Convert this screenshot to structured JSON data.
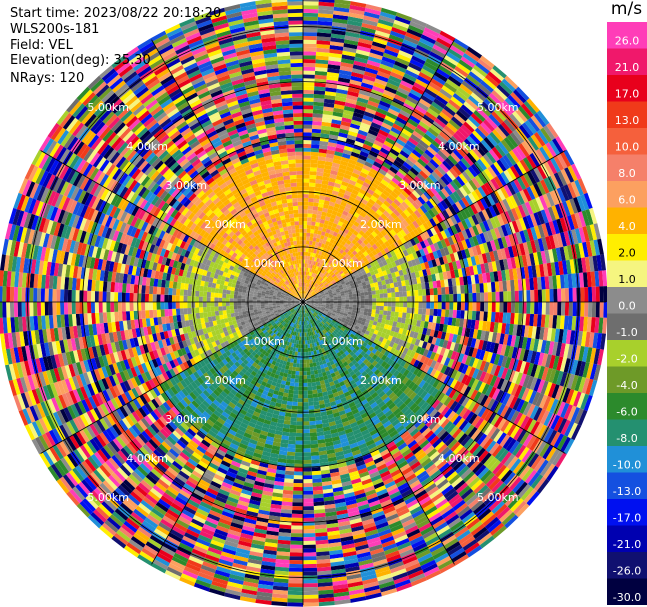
{
  "header": {
    "start_time": "Start time: 2023/08/22 20:18:20",
    "instrument": "WLS200s-181",
    "field": "Field: VEL",
    "elevation": "Elevation(deg): 35.30",
    "nrays": "NRays: 120"
  },
  "colorbar": {
    "unit": "m/s",
    "ticks": [
      "26.0",
      "21.0",
      "17.0",
      "13.0",
      "10.0",
      "8.0",
      "6.0",
      "4.0",
      "2.0",
      "1.0",
      "0.0",
      "-1.0",
      "-2.0",
      "-4.0",
      "-6.0",
      "-8.0",
      "-10.0",
      "-13.0",
      "-17.0",
      "-21.0",
      "-26.0",
      "-30.0"
    ],
    "colors": [
      "#ff3db8",
      "#f0186b",
      "#e8001c",
      "#f03a1a",
      "#f5603c",
      "#f5806a",
      "#fca060",
      "#ffb200",
      "#ffee00",
      "#f5f580",
      "#8c8c8c",
      "#6e6e6e",
      "#a8d02c",
      "#6e9a28",
      "#2c8a2c",
      "#249070",
      "#2090d8",
      "#1450e0",
      "#0010f0",
      "#0000b0",
      "#101070",
      "#000040"
    ]
  },
  "chart_data": {
    "type": "polar-ppi",
    "field": "VEL",
    "units": "m/s",
    "n_rays": 120,
    "range_rings_km": [
      1.0,
      2.0,
      3.0,
      4.0,
      5.0
    ],
    "ring_labels": [
      "1.00km",
      "2.00km",
      "3.00km",
      "4.00km",
      "5.00km"
    ],
    "max_range_km": 5.5,
    "value_range": [
      -30.0,
      26.0
    ],
    "sectors": [
      {
        "name": "north",
        "typical_velocity": 4.0,
        "range_km": [
          0.3,
          2.6
        ]
      },
      {
        "name": "south",
        "typical_velocity": -6.0,
        "range_km": [
          0.3,
          3.0
        ]
      },
      {
        "name": "east-near",
        "typical_velocity": 0.0,
        "range_km": [
          0.0,
          1.2
        ]
      },
      {
        "name": "west-near",
        "typical_velocity": 0.0,
        "range_km": [
          0.0,
          1.2
        ]
      }
    ],
    "far_range": "noise"
  }
}
